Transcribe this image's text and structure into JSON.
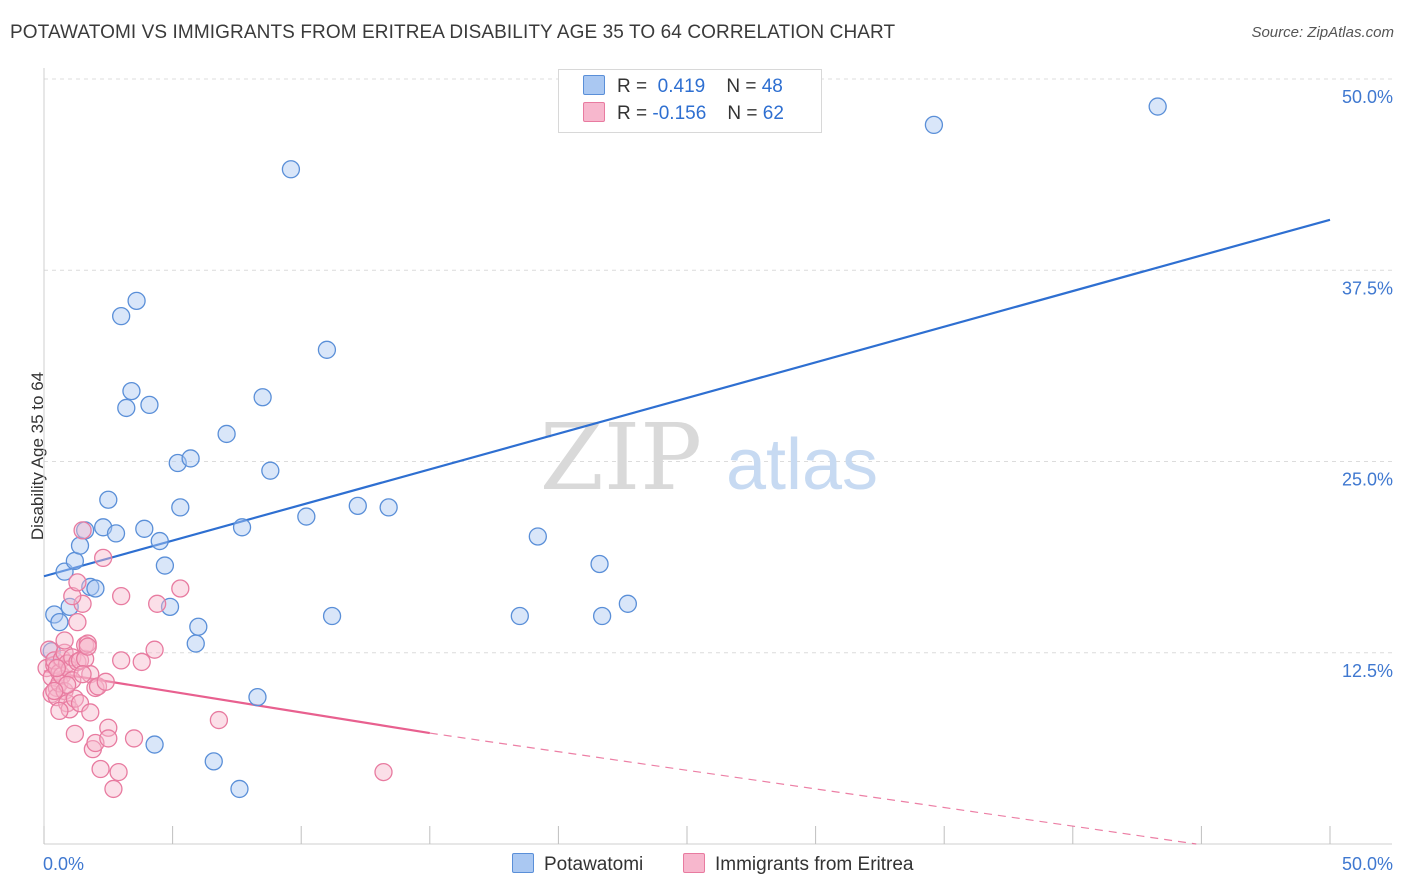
{
  "title": "POTAWATOMI VS IMMIGRANTS FROM ERITREA DISABILITY AGE 35 TO 64 CORRELATION CHART",
  "source": "Source: ZipAtlas.com",
  "watermark": {
    "zip": "ZIP",
    "atlas": "atlas"
  },
  "legend_top": {
    "r_label": "R =",
    "n_label": "N =",
    "rows": [
      {
        "r": "0.419",
        "n": "48"
      },
      {
        "r": "-0.156",
        "n": "62"
      }
    ]
  },
  "colors": {
    "blue_fill": "#aac8f2",
    "blue_stroke": "#5a8fd8",
    "blue_line": "#2e6fd1",
    "pink_fill": "#f7b7cd",
    "pink_stroke": "#e87ba0",
    "pink_line": "#e8608f",
    "tick_text": "#3f78d0",
    "grid": "#dcdcdc"
  },
  "chart_data": {
    "type": "scatter",
    "title": "POTAWATOMI VS IMMIGRANTS FROM ERITREA DISABILITY AGE 35 TO 64 CORRELATION CHART",
    "xlabel": "",
    "ylabel": "Disability Age 35 to 64",
    "xlim": [
      0,
      50
    ],
    "ylim": [
      0,
      50
    ],
    "x_tick_labels": [
      "0.0%",
      "50.0%"
    ],
    "y_ticks": [
      12.5,
      25.0,
      37.5,
      50.0
    ],
    "y_tick_labels": [
      "12.5%",
      "25.0%",
      "37.5%",
      "50.0%"
    ],
    "grid": true,
    "legend_position": "top-center",
    "series": [
      {
        "name": "Potawatomi",
        "color": "blue",
        "r": 0.419,
        "n": 48,
        "trend": {
          "x0": 0,
          "y0": 17.5,
          "x1": 50,
          "y1": 40.8,
          "dashed_from": null
        },
        "points": [
          [
            0.3,
            12.6
          ],
          [
            0.4,
            15.0
          ],
          [
            0.6,
            14.5
          ],
          [
            0.8,
            17.8
          ],
          [
            1.0,
            15.5
          ],
          [
            1.2,
            18.5
          ],
          [
            1.4,
            19.5
          ],
          [
            1.6,
            20.5
          ],
          [
            1.8,
            16.8
          ],
          [
            2.0,
            16.7
          ],
          [
            2.3,
            20.7
          ],
          [
            2.5,
            22.5
          ],
          [
            2.8,
            20.3
          ],
          [
            3.0,
            34.5
          ],
          [
            3.2,
            28.5
          ],
          [
            3.4,
            29.6
          ],
          [
            3.6,
            35.5
          ],
          [
            3.9,
            20.6
          ],
          [
            4.1,
            28.7
          ],
          [
            4.3,
            6.5
          ],
          [
            4.5,
            19.8
          ],
          [
            4.7,
            18.2
          ],
          [
            4.9,
            15.5
          ],
          [
            5.2,
            24.9
          ],
          [
            5.3,
            22.0
          ],
          [
            5.7,
            25.2
          ],
          [
            5.9,
            13.1
          ],
          [
            6.0,
            14.2
          ],
          [
            6.6,
            5.4
          ],
          [
            7.1,
            26.8
          ],
          [
            7.6,
            3.6
          ],
          [
            7.7,
            20.7
          ],
          [
            8.3,
            9.6
          ],
          [
            8.5,
            29.2
          ],
          [
            8.8,
            24.4
          ],
          [
            9.6,
            44.1
          ],
          [
            10.2,
            21.4
          ],
          [
            11.0,
            32.3
          ],
          [
            11.2,
            14.9
          ],
          [
            12.2,
            22.1
          ],
          [
            13.4,
            22.0
          ],
          [
            18.5,
            14.9
          ],
          [
            19.2,
            20.1
          ],
          [
            21.6,
            18.3
          ],
          [
            21.7,
            14.9
          ],
          [
            22.7,
            15.7
          ],
          [
            34.6,
            47.0
          ],
          [
            43.3,
            48.2
          ]
        ]
      },
      {
        "name": "Immigrants from Eritrea",
        "color": "pink",
        "r": -0.156,
        "n": 62,
        "trend": {
          "x0": 0,
          "y0": 11.3,
          "x1": 50,
          "y1": -2.2,
          "dashed_from": 15.0
        },
        "points": [
          [
            0.1,
            11.5
          ],
          [
            0.2,
            12.7
          ],
          [
            0.3,
            10.9
          ],
          [
            0.3,
            9.8
          ],
          [
            0.4,
            11.7
          ],
          [
            0.4,
            12.0
          ],
          [
            0.5,
            10.2
          ],
          [
            0.5,
            9.6
          ],
          [
            0.6,
            11.2
          ],
          [
            0.6,
            10.5
          ],
          [
            0.7,
            12.1
          ],
          [
            0.7,
            11.0
          ],
          [
            0.8,
            10.0
          ],
          [
            0.8,
            12.5
          ],
          [
            0.9,
            9.2
          ],
          [
            0.9,
            11.8
          ],
          [
            1.0,
            11.4
          ],
          [
            1.0,
            8.8
          ],
          [
            1.1,
            10.7
          ],
          [
            1.1,
            12.2
          ],
          [
            1.2,
            7.2
          ],
          [
            1.2,
            9.5
          ],
          [
            1.3,
            11.9
          ],
          [
            1.3,
            14.5
          ],
          [
            1.4,
            12.0
          ],
          [
            1.4,
            9.2
          ],
          [
            1.5,
            15.7
          ],
          [
            1.5,
            20.5
          ],
          [
            1.6,
            12.1
          ],
          [
            1.6,
            13.0
          ],
          [
            1.7,
            13.1
          ],
          [
            1.7,
            12.9
          ],
          [
            1.8,
            11.1
          ],
          [
            1.9,
            6.2
          ],
          [
            2.0,
            10.2
          ],
          [
            2.0,
            6.6
          ],
          [
            2.1,
            10.3
          ],
          [
            2.2,
            4.9
          ],
          [
            2.3,
            18.7
          ],
          [
            2.4,
            10.6
          ],
          [
            2.5,
            7.6
          ],
          [
            2.5,
            6.9
          ],
          [
            2.7,
            3.6
          ],
          [
            2.9,
            4.7
          ],
          [
            3.0,
            16.2
          ],
          [
            3.0,
            12.0
          ],
          [
            3.5,
            6.9
          ],
          [
            3.8,
            11.9
          ],
          [
            4.3,
            12.7
          ],
          [
            4.4,
            15.7
          ],
          [
            5.3,
            16.7
          ],
          [
            6.8,
            8.1
          ],
          [
            13.2,
            4.7
          ],
          [
            0.6,
            8.7
          ],
          [
            0.8,
            13.3
          ],
          [
            1.1,
            16.2
          ],
          [
            1.3,
            17.1
          ],
          [
            1.5,
            11.1
          ],
          [
            0.5,
            11.5
          ],
          [
            0.9,
            10.4
          ],
          [
            0.4,
            10.0
          ],
          [
            1.8,
            8.6
          ]
        ]
      }
    ]
  }
}
